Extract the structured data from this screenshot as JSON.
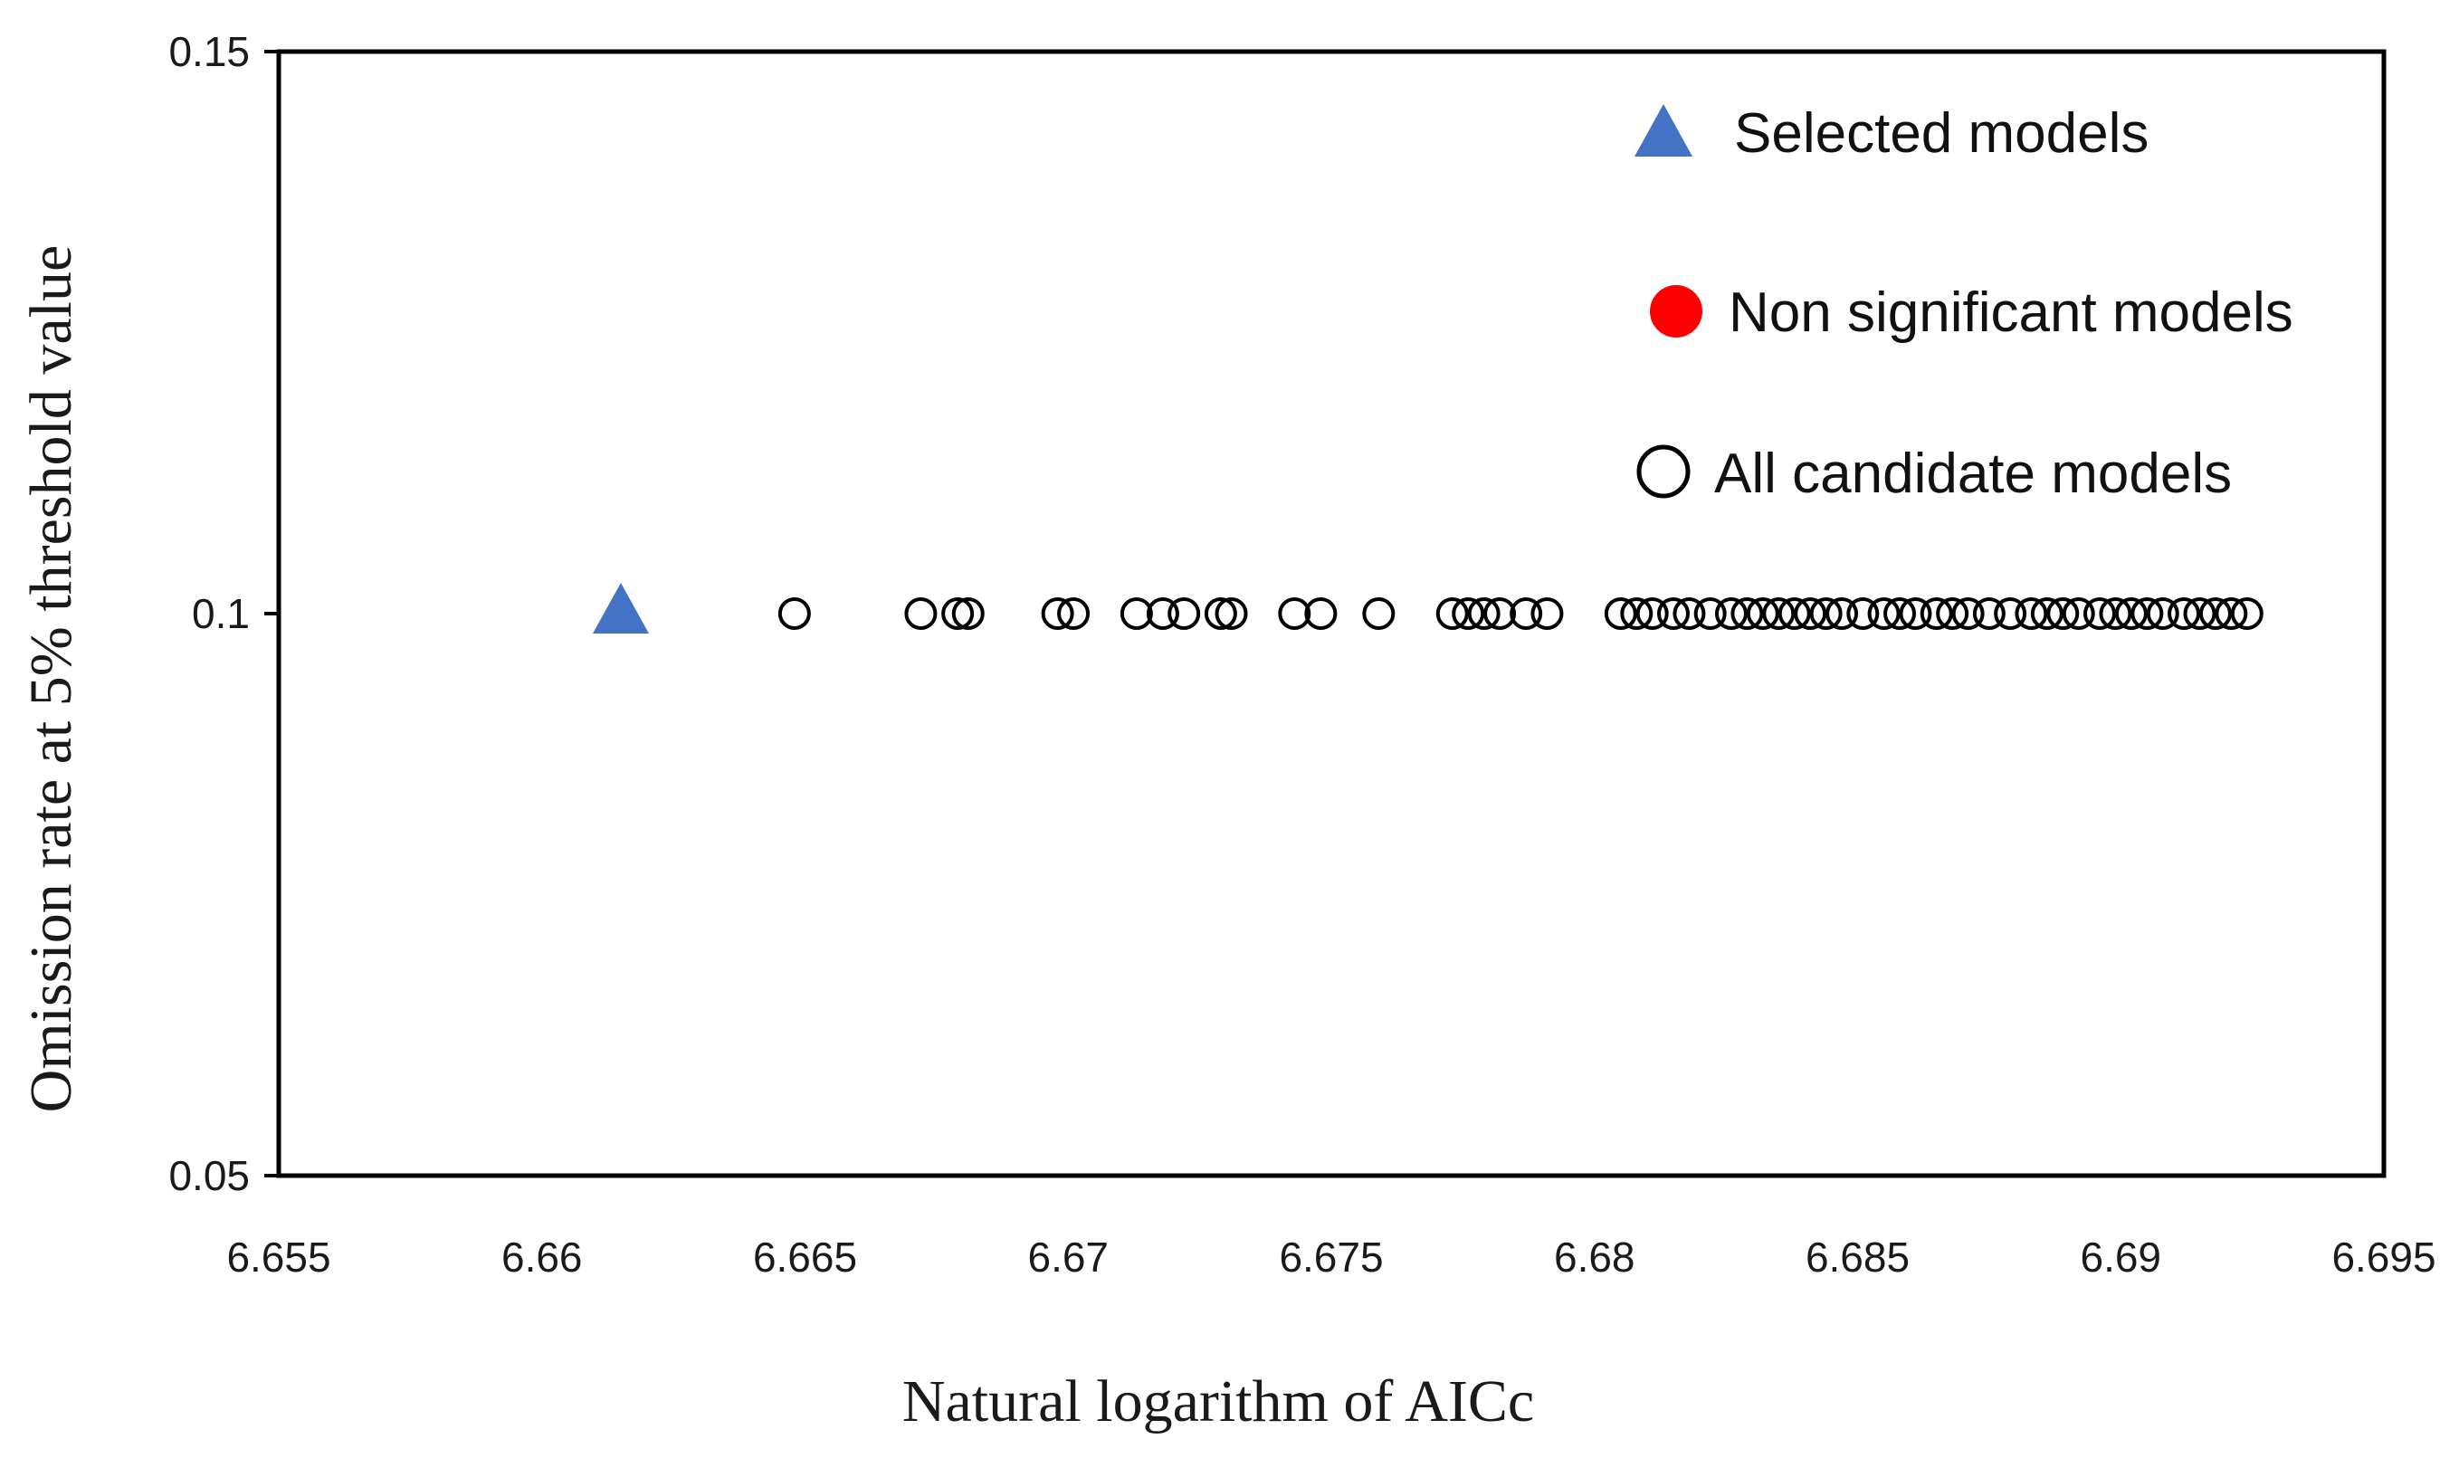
{
  "chart_data": {
    "type": "scatter",
    "xlabel": "Natural logarithm of AICc",
    "ylabel": "Omission rate at 5% threshold value",
    "xlim": [
      6.655,
      6.695
    ],
    "ylim": [
      0.05,
      0.15
    ],
    "x_ticks": [
      "6.655",
      "6.66",
      "6.665",
      "6.67",
      "6.675",
      "6.68",
      "6.685",
      "6.69",
      "6.695"
    ],
    "y_ticks": [
      "0.05",
      "0.1",
      "0.15"
    ],
    "grid": false,
    "legend_position": "top-right",
    "series": [
      {
        "name": "Selected models",
        "marker": "triangle",
        "color": "#4472c4",
        "x": [
          6.6615
        ],
        "y": [
          0.1
        ]
      },
      {
        "name": "Non significant models",
        "marker": "filled-circle",
        "color": "#ff0000",
        "x": [],
        "y": []
      },
      {
        "name": "All candidate models",
        "marker": "open-circle",
        "color": "#000000",
        "x": [
          6.6648,
          6.6672,
          6.6679,
          6.6681,
          6.6698,
          6.6701,
          6.6713,
          6.6718,
          6.6722,
          6.6729,
          6.6731,
          6.6743,
          6.6748,
          6.6759,
          6.6773,
          6.6776,
          6.6779,
          6.6782,
          6.6787,
          6.6791,
          6.6805,
          6.6808,
          6.6811,
          6.6815,
          6.6818,
          6.6822,
          6.6826,
          6.6829,
          6.6832,
          6.6835,
          6.6838,
          6.6841,
          6.6844,
          6.6847,
          6.6851,
          6.6855,
          6.6858,
          6.6861,
          6.6865,
          6.6868,
          6.6871,
          6.6875,
          6.6879,
          6.6883,
          6.6886,
          6.6889,
          6.6892,
          6.6896,
          6.6899,
          6.6902,
          6.6905,
          6.6908,
          6.6912,
          6.6915,
          6.6918,
          6.6921,
          6.6924
        ],
        "y": [
          0.1,
          0.1,
          0.1,
          0.1,
          0.1,
          0.1,
          0.1,
          0.1,
          0.1,
          0.1,
          0.1,
          0.1,
          0.1,
          0.1,
          0.1,
          0.1,
          0.1,
          0.1,
          0.1,
          0.1,
          0.1,
          0.1,
          0.1,
          0.1,
          0.1,
          0.1,
          0.1,
          0.1,
          0.1,
          0.1,
          0.1,
          0.1,
          0.1,
          0.1,
          0.1,
          0.1,
          0.1,
          0.1,
          0.1,
          0.1,
          0.1,
          0.1,
          0.1,
          0.1,
          0.1,
          0.1,
          0.1,
          0.1,
          0.1,
          0.1,
          0.1,
          0.1,
          0.1,
          0.1,
          0.1,
          0.1,
          0.1
        ]
      }
    ]
  }
}
